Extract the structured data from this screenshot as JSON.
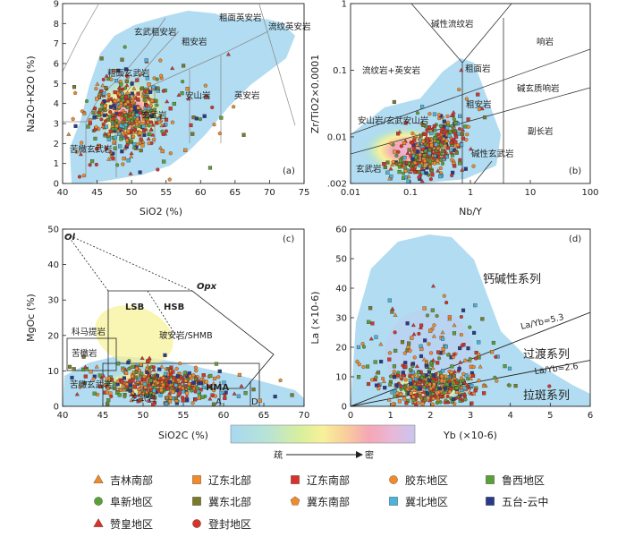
{
  "chart_data": [
    {
      "id": "a",
      "type": "scatter",
      "panel_label": "(a)",
      "xlabel": "SiO2 (%)",
      "ylabel": "Na2O+K2O (%)",
      "xlim": [
        40,
        75
      ],
      "ylim": [
        0,
        9
      ],
      "xticks": [
        40,
        45,
        50,
        55,
        60,
        65,
        70,
        75
      ],
      "yticks": [
        0,
        1,
        2,
        3,
        4,
        5,
        6,
        7,
        8,
        9
      ],
      "field_labels": [
        "粗安岩",
        "粗面英安岩",
        "流纹英安岩",
        "玄武粗安岩",
        "粗面玄武岩",
        "安山岩",
        "英安岩",
        "玄武岩",
        "苦橄玄武岩"
      ],
      "density_center": {
        "x": 49.5,
        "y": 3.4
      }
    },
    {
      "id": "b",
      "type": "scatter",
      "scale": "log-log",
      "panel_label": "(b)",
      "xlabel": "Nb/Y",
      "ylabel": "Zr/TiO2×0.0001",
      "xlim": [
        0.01,
        100
      ],
      "ylim": [
        0.002,
        1
      ],
      "xticks": [
        "0.01",
        "0.1",
        "1",
        "10",
        "100"
      ],
      "yticks": [
        ".002",
        "0.01",
        "0.1",
        "1"
      ],
      "field_labels": [
        "碱性流纹岩",
        "响岩",
        "流纹岩+英安岩",
        "粗面岩",
        "碱玄质响岩",
        "粗安岩",
        "副长岩",
        "安山岩/玄武安山岩",
        "碱性玄武岩",
        "玄武岩"
      ],
      "density_center": {
        "x": 0.2,
        "y": 0.006
      }
    },
    {
      "id": "c",
      "type": "scatter",
      "panel_label": "(c)",
      "xlabel": "SiO2C (%)",
      "ylabel": "MgOc (%)",
      "xlim": [
        40,
        70
      ],
      "ylim": [
        0,
        50
      ],
      "xticks": [
        40,
        45,
        50,
        55,
        60,
        65,
        70
      ],
      "yticks": [
        0,
        10,
        20,
        30,
        40,
        50
      ],
      "point_labels": [
        "Ol",
        "Opx"
      ],
      "field_labels": [
        "LSB",
        "HSB",
        "科马提岩",
        "玻安岩/SHMB",
        "苦橄岩",
        "苦橄玄武岩",
        "玄武岩",
        "HMA",
        "A",
        "D"
      ],
      "density_center": {
        "x": 52,
        "y": 6
      }
    },
    {
      "id": "d",
      "type": "scatter",
      "panel_label": "(d)",
      "xlabel": "Yb (×10-6)",
      "ylabel": "La (×10-6)",
      "xlim": [
        0,
        6
      ],
      "ylim": [
        0,
        60
      ],
      "xticks": [
        0,
        1,
        2,
        3,
        4,
        5,
        6
      ],
      "yticks": [
        0,
        10,
        20,
        30,
        40,
        50,
        60
      ],
      "lines": [
        {
          "label": "La/Yb=5.3",
          "slope": 5.3
        },
        {
          "label": "La/Yb=2.6",
          "slope": 2.6
        }
      ],
      "field_labels": [
        "钙碱性系列",
        "过渡系列",
        "拉斑系列"
      ],
      "density_center": {
        "x": 2,
        "y": 6
      }
    }
  ],
  "density_bar": {
    "low_label": "疏",
    "high_label": "密",
    "colors": [
      "#a8d8f0",
      "#b8e3d6",
      "#d9ef9c",
      "#f7f19a",
      "#f9cf9a",
      "#f5a7b5",
      "#e8b8d8",
      "#c9c5ef"
    ]
  },
  "legend": [
    {
      "label": "吉林南部",
      "marker": "triangle",
      "color": "#f08a2a"
    },
    {
      "label": "辽东北部",
      "marker": "square",
      "color": "#f08a2a"
    },
    {
      "label": "辽东南部",
      "marker": "square",
      "color": "#d6332a"
    },
    {
      "label": "胶东地区",
      "marker": "circle",
      "color": "#f08a2a"
    },
    {
      "label": "鲁西地区",
      "marker": "square",
      "color": "#5aa036"
    },
    {
      "label": "阜新地区",
      "marker": "circle",
      "color": "#5aa036"
    },
    {
      "label": "冀东北部",
      "marker": "square",
      "color": "#7a7a2a"
    },
    {
      "label": "冀东南部",
      "marker": "pentagon",
      "color": "#f08a2a"
    },
    {
      "label": "冀北地区",
      "marker": "square",
      "color": "#4fb3d9"
    },
    {
      "label": "五台-云中",
      "marker": "square",
      "color": "#2a3a8a"
    },
    {
      "label": "赞皇地区",
      "marker": "triangle",
      "color": "#d6332a"
    },
    {
      "label": "登封地区",
      "marker": "circle",
      "color": "#d6332a"
    }
  ]
}
